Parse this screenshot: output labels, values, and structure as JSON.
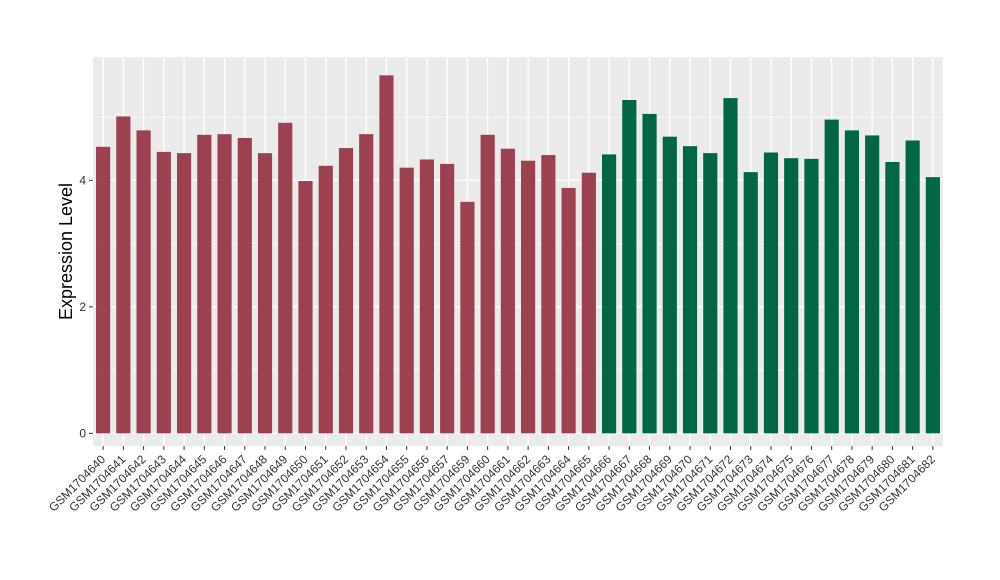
{
  "chart_data": {
    "type": "bar",
    "title": "",
    "xlabel": "",
    "ylabel": "Expression Level",
    "ylim": [
      -0.2,
      5.95
    ],
    "yticks": [
      0,
      2,
      4
    ],
    "grid": true,
    "legend": "none",
    "colors": {
      "group1": "#9b4150",
      "group2": "#006644",
      "panel_bg": "#ebebeb",
      "grid": "#ffffff"
    },
    "categories": [
      "GSM1704640",
      "GSM1704641",
      "GSM1704642",
      "GSM1704643",
      "GSM1704644",
      "GSM1704645",
      "GSM1704646",
      "GSM1704647",
      "GSM1704648",
      "GSM1704649",
      "GSM1704650",
      "GSM1704651",
      "GSM1704652",
      "GSM1704653",
      "GSM1704654",
      "GSM1704655",
      "GSM1704656",
      "GSM1704657",
      "GSM1704659",
      "GSM1704660",
      "GSM1704661",
      "GSM1704662",
      "GSM1704663",
      "GSM1704664",
      "GSM1704665",
      "GSM1704666",
      "GSM1704667",
      "GSM1704668",
      "GSM1704669",
      "GSM1704670",
      "GSM1704671",
      "GSM1704672",
      "GSM1704673",
      "GSM1704674",
      "GSM1704675",
      "GSM1704676",
      "GSM1704677",
      "GSM1704678",
      "GSM1704679",
      "GSM1704680",
      "GSM1704681",
      "GSM1704682"
    ],
    "values": [
      4.53,
      5.01,
      4.79,
      4.45,
      4.43,
      4.72,
      4.73,
      4.67,
      4.43,
      4.91,
      3.99,
      4.23,
      4.51,
      4.73,
      5.66,
      4.2,
      4.33,
      4.26,
      3.66,
      4.72,
      4.5,
      4.31,
      4.4,
      3.88,
      4.12,
      4.41,
      5.27,
      5.05,
      4.69,
      4.54,
      4.43,
      5.3,
      4.13,
      4.44,
      4.35,
      4.34,
      4.96,
      4.79,
      4.71,
      4.29,
      4.63,
      4.05
    ],
    "groups": [
      1,
      1,
      1,
      1,
      1,
      1,
      1,
      1,
      1,
      1,
      1,
      1,
      1,
      1,
      1,
      1,
      1,
      1,
      1,
      1,
      1,
      1,
      1,
      1,
      1,
      2,
      2,
      2,
      2,
      2,
      2,
      2,
      2,
      2,
      2,
      2,
      2,
      2,
      2,
      2,
      2,
      2
    ]
  }
}
